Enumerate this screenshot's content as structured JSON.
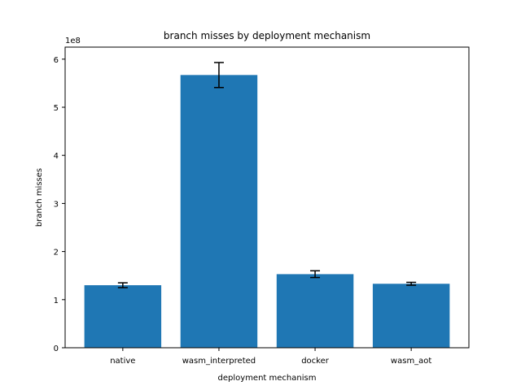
{
  "chart_data": {
    "type": "bar",
    "title": "branch misses by deployment mechanism",
    "xlabel": "deployment mechanism",
    "ylabel": "branch misses",
    "y_offset_label": "1e8",
    "y_scale": 100000000,
    "ylim": [
      0,
      6.25
    ],
    "yticks": [
      0,
      1,
      2,
      3,
      4,
      5,
      6
    ],
    "ytick_labels": [
      "0",
      "1",
      "2",
      "3",
      "4",
      "5",
      "6"
    ],
    "categories": [
      "native",
      "wasm_interpreted",
      "docker",
      "wasm_aot"
    ],
    "values": [
      1.3,
      5.67,
      1.53,
      1.33
    ],
    "errors": [
      0.05,
      0.26,
      0.07,
      0.03
    ],
    "grid": false,
    "colors": {
      "bar": "#1f77b4",
      "errorbar": "#000000",
      "axis": "#000000"
    }
  }
}
